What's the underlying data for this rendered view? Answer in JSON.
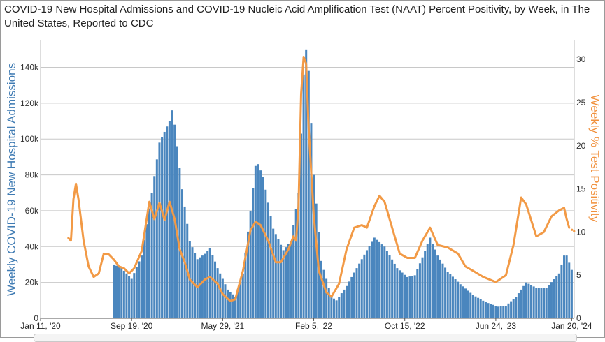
{
  "chart_data": {
    "type": "bar+line",
    "title": "COVID-19 New Hospital Admissions and COVID-19 Nucleic Acid Amplification Test (NAAT) Percent Positivity, by Week, in The United States, Reported to CDC",
    "ylabel": "Weekly COVID-19 New Hospital Admissions",
    "y2label": "Weekly % Test Positivity",
    "ylim": [
      0,
      155000
    ],
    "y2lim": [
      0,
      32.2
    ],
    "y_ticks": [
      {
        "value": 0,
        "label": "0"
      },
      {
        "value": 20000,
        "label": "20k"
      },
      {
        "value": 40000,
        "label": "40k"
      },
      {
        "value": 60000,
        "label": "60k"
      },
      {
        "value": 80000,
        "label": "80k"
      },
      {
        "value": 100000,
        "label": "100k"
      },
      {
        "value": 120000,
        "label": "120k"
      },
      {
        "value": 140000,
        "label": "140k"
      }
    ],
    "y2_ticks": [
      {
        "value": 0,
        "label": "0"
      },
      {
        "value": 5,
        "label": "5"
      },
      {
        "value": 10,
        "label": "10"
      },
      {
        "value": 15,
        "label": "15"
      },
      {
        "value": 20,
        "label": "20"
      },
      {
        "value": 25,
        "label": "25"
      },
      {
        "value": 30,
        "label": "30"
      }
    ],
    "x_start": "2020-01-11",
    "x_end": "2024-01-27",
    "x_ticks": [
      {
        "date": "2020-01-11",
        "label": "Jan 11, '20"
      },
      {
        "date": "2020-09-19",
        "label": "Sep 19, '20"
      },
      {
        "date": "2021-05-29",
        "label": "May 29, '21"
      },
      {
        "date": "2022-02-05",
        "label": "Feb 5, '22"
      },
      {
        "date": "2022-10-15",
        "label": "Oct 15, '22"
      },
      {
        "date": "2023-06-24",
        "label": "Jun 24, '23"
      },
      {
        "date": "2024-01-20",
        "label": "Jan 20, '24"
      }
    ],
    "bars_name": "Weekly COVID-19 New Hospital Admissions",
    "bars_color": "#4a86be",
    "bars_first_week": "2020-08-01",
    "bars_anchors": [
      [
        "2020-08-01",
        30000
      ],
      [
        "2020-08-22",
        28000
      ],
      [
        "2020-09-19",
        22000
      ],
      [
        "2020-10-17",
        35000
      ],
      [
        "2020-11-14",
        70000
      ],
      [
        "2020-12-05",
        98000
      ],
      [
        "2020-12-19",
        104000
      ],
      [
        "2021-01-02",
        110000
      ],
      [
        "2021-01-09",
        116000
      ],
      [
        "2021-01-16",
        108000
      ],
      [
        "2021-02-06",
        72000
      ],
      [
        "2021-02-27",
        43000
      ],
      [
        "2021-03-20",
        33000
      ],
      [
        "2021-04-10",
        36000
      ],
      [
        "2021-04-24",
        39000
      ],
      [
        "2021-05-15",
        28000
      ],
      [
        "2021-06-12",
        16000
      ],
      [
        "2021-07-03",
        12000
      ],
      [
        "2021-07-24",
        25000
      ],
      [
        "2021-08-14",
        60000
      ],
      [
        "2021-08-28",
        85000
      ],
      [
        "2021-09-04",
        86000
      ],
      [
        "2021-09-18",
        79000
      ],
      [
        "2021-10-16",
        50000
      ],
      [
        "2021-11-13",
        38000
      ],
      [
        "2021-12-04",
        43000
      ],
      [
        "2021-12-25",
        70000
      ],
      [
        "2022-01-08",
        136000
      ],
      [
        "2022-01-15",
        150000
      ],
      [
        "2022-01-22",
        138000
      ],
      [
        "2022-02-05",
        80000
      ],
      [
        "2022-02-26",
        32000
      ],
      [
        "2022-03-26",
        12000
      ],
      [
        "2022-04-09",
        10000
      ],
      [
        "2022-05-07",
        18000
      ],
      [
        "2022-06-04",
        28000
      ],
      [
        "2022-07-02",
        38000
      ],
      [
        "2022-07-23",
        45000
      ],
      [
        "2022-08-20",
        40000
      ],
      [
        "2022-09-24",
        28000
      ],
      [
        "2022-10-22",
        23000
      ],
      [
        "2022-11-12",
        24000
      ],
      [
        "2022-12-03",
        34000
      ],
      [
        "2022-12-24",
        45000
      ],
      [
        "2023-01-14",
        35000
      ],
      [
        "2023-02-11",
        26000
      ],
      [
        "2023-03-18",
        19000
      ],
      [
        "2023-04-22",
        13000
      ],
      [
        "2023-05-27",
        9000
      ],
      [
        "2023-07-01",
        6500
      ],
      [
        "2023-07-22",
        7000
      ],
      [
        "2023-08-19",
        12000
      ],
      [
        "2023-09-16",
        20000
      ],
      [
        "2023-10-14",
        17000
      ],
      [
        "2023-11-11",
        17000
      ],
      [
        "2023-12-16",
        25000
      ],
      [
        "2023-12-30",
        35000
      ],
      [
        "2024-01-06",
        35000
      ],
      [
        "2024-01-13",
        31000
      ],
      [
        "2024-01-20",
        27000
      ]
    ],
    "line_name": "Weekly % Test Positivity",
    "line_color": "#f29a46",
    "line_points": [
      [
        "2020-03-28",
        9.3
      ],
      [
        "2020-04-04",
        9.0
      ],
      [
        "2020-04-11",
        13.8
      ],
      [
        "2020-04-18",
        15.6
      ],
      [
        "2020-04-25",
        13.8
      ],
      [
        "2020-05-09",
        9.0
      ],
      [
        "2020-05-23",
        6.0
      ],
      [
        "2020-06-06",
        4.8
      ],
      [
        "2020-06-20",
        5.2
      ],
      [
        "2020-07-04",
        7.5
      ],
      [
        "2020-07-18",
        7.4
      ],
      [
        "2020-08-01",
        6.8
      ],
      [
        "2020-08-15",
        6.0
      ],
      [
        "2020-08-29",
        5.8
      ],
      [
        "2020-09-12",
        5.2
      ],
      [
        "2020-09-26",
        5.8
      ],
      [
        "2020-10-17",
        7.8
      ],
      [
        "2020-11-07",
        13.5
      ],
      [
        "2020-11-21",
        11.5
      ],
      [
        "2020-12-05",
        13.4
      ],
      [
        "2020-12-19",
        11.4
      ],
      [
        "2021-01-02",
        13.5
      ],
      [
        "2021-01-16",
        11.5
      ],
      [
        "2021-01-30",
        8.0
      ],
      [
        "2021-02-13",
        6.5
      ],
      [
        "2021-02-27",
        4.5
      ],
      [
        "2021-03-20",
        3.6
      ],
      [
        "2021-04-10",
        4.5
      ],
      [
        "2021-04-24",
        4.8
      ],
      [
        "2021-05-15",
        4.0
      ],
      [
        "2021-05-29",
        2.8
      ],
      [
        "2021-06-19",
        2.0
      ],
      [
        "2021-07-03",
        2.2
      ],
      [
        "2021-07-24",
        5.5
      ],
      [
        "2021-08-14",
        10.2
      ],
      [
        "2021-08-28",
        11.2
      ],
      [
        "2021-09-11",
        10.8
      ],
      [
        "2021-10-02",
        9.0
      ],
      [
        "2021-10-23",
        6.5
      ],
      [
        "2021-11-06",
        6.5
      ],
      [
        "2021-11-27",
        8.0
      ],
      [
        "2021-12-11",
        9.5
      ],
      [
        "2021-12-18",
        9.0
      ],
      [
        "2021-12-25",
        13.0
      ],
      [
        "2022-01-01",
        26.0
      ],
      [
        "2022-01-08",
        30.3
      ],
      [
        "2022-01-15",
        29.5
      ],
      [
        "2022-01-22",
        22.0
      ],
      [
        "2022-02-05",
        12.0
      ],
      [
        "2022-02-19",
        5.5
      ],
      [
        "2022-03-12",
        3.0
      ],
      [
        "2022-03-26",
        2.5
      ],
      [
        "2022-04-16",
        4.0
      ],
      [
        "2022-05-07",
        8.0
      ],
      [
        "2022-05-28",
        10.5
      ],
      [
        "2022-06-18",
        10.8
      ],
      [
        "2022-07-02",
        10.5
      ],
      [
        "2022-07-23",
        13.0
      ],
      [
        "2022-08-06",
        14.2
      ],
      [
        "2022-08-20",
        13.5
      ],
      [
        "2022-09-10",
        10.5
      ],
      [
        "2022-10-01",
        7.5
      ],
      [
        "2022-10-22",
        7.0
      ],
      [
        "2022-11-12",
        7.0
      ],
      [
        "2022-12-03",
        9.0
      ],
      [
        "2022-12-24",
        10.5
      ],
      [
        "2023-01-14",
        8.5
      ],
      [
        "2023-02-11",
        8.2
      ],
      [
        "2023-03-11",
        7.5
      ],
      [
        "2023-04-01",
        6.0
      ],
      [
        "2023-04-22",
        5.5
      ],
      [
        "2023-05-20",
        4.8
      ],
      [
        "2023-06-24",
        4.2
      ],
      [
        "2023-07-22",
        5.0
      ],
      [
        "2023-08-12",
        8.5
      ],
      [
        "2023-09-02",
        14.0
      ],
      [
        "2023-09-16",
        13.2
      ],
      [
        "2023-10-14",
        9.5
      ],
      [
        "2023-11-04",
        10.0
      ],
      [
        "2023-11-25",
        11.8
      ],
      [
        "2023-12-16",
        12.5
      ],
      [
        "2023-12-30",
        12.8
      ],
      [
        "2024-01-06",
        11.5
      ],
      [
        "2024-01-13",
        10.5
      ]
    ],
    "grid": true,
    "legend": "none"
  }
}
